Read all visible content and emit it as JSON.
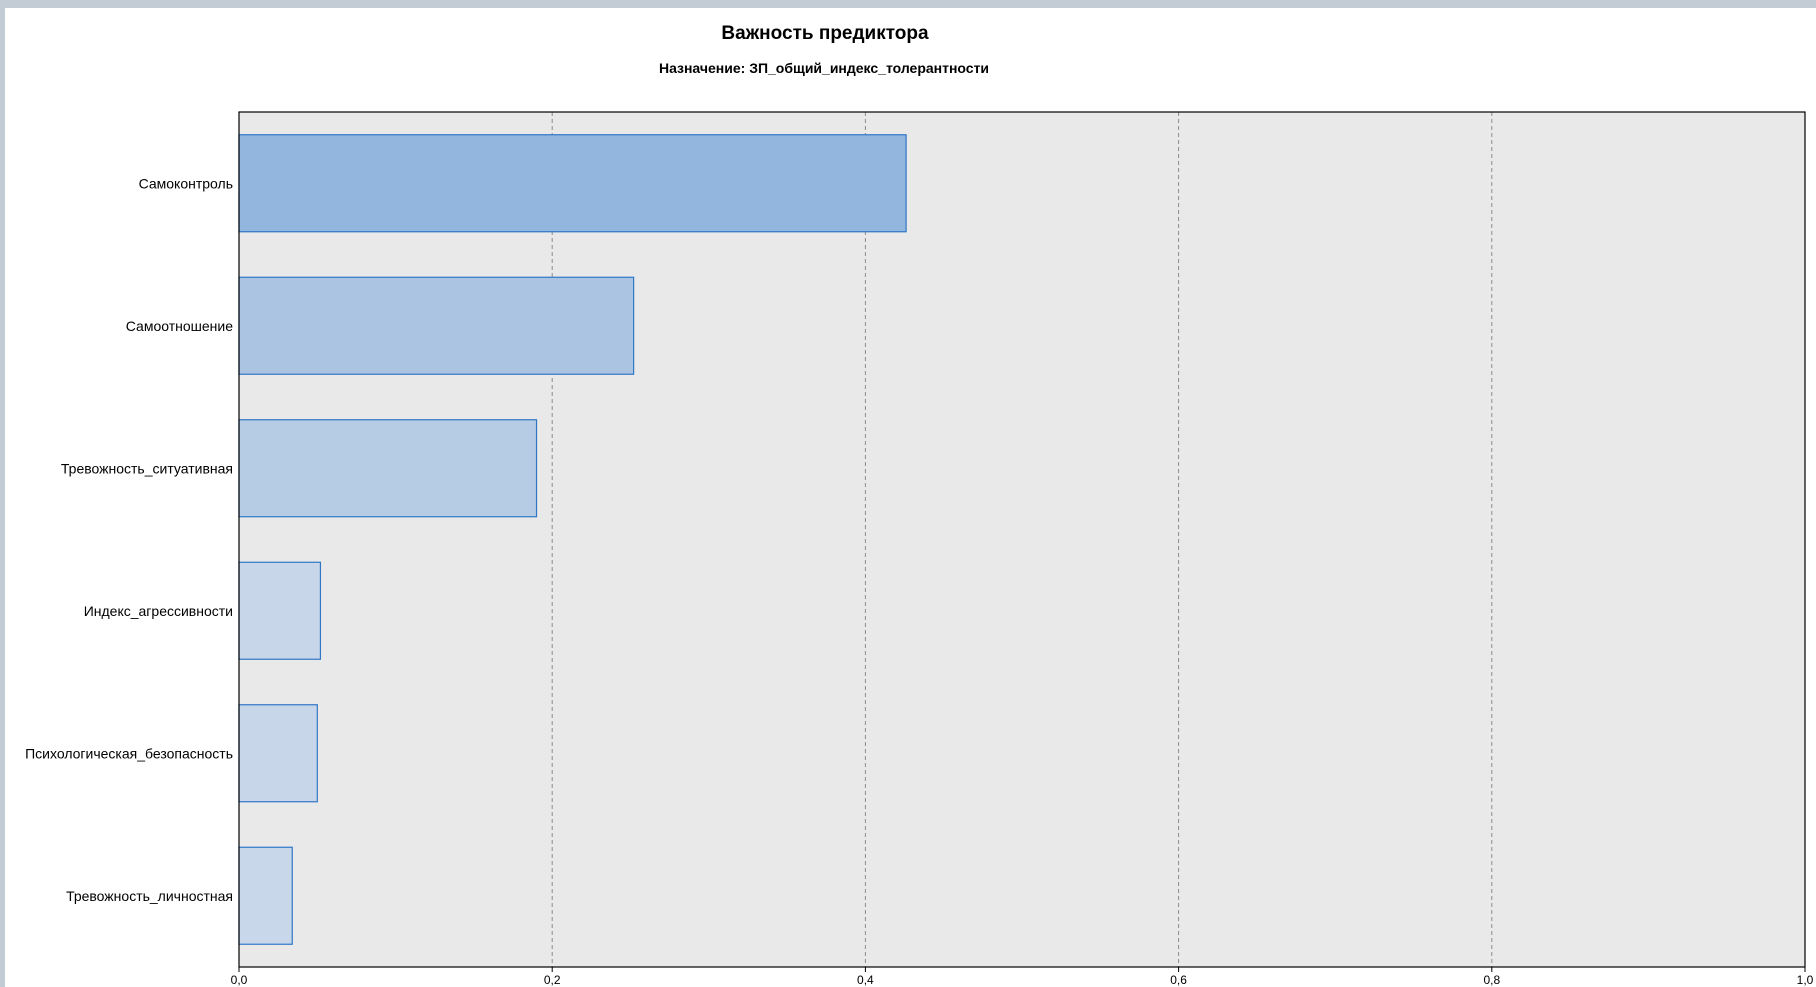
{
  "chart_data": {
    "type": "bar",
    "orientation": "horizontal",
    "title": "Важность предиктора",
    "subtitle": "Назначение: ЗП_общий_индекс_толерантности",
    "categories": [
      "Самоконтроль",
      "Самоотношение",
      "Тревожность_ситуативная",
      "Индекс_агрессивности",
      "Психологическая_безопасность",
      "Тревожность_личностная"
    ],
    "values": [
      0.426,
      0.252,
      0.19,
      0.052,
      0.05,
      0.034
    ],
    "bar_colors": [
      "#93b6de",
      "#aac4e2",
      "#b6cbe4",
      "#c7d6e8",
      "#c7d6e8",
      "#c8d7e9"
    ],
    "bar_stroke": "#2f77c6",
    "plot_background": "#e9e9e9",
    "xlim": [
      0,
      1
    ],
    "xticks": [
      0,
      0.2,
      0.4,
      0.6,
      0.8,
      1.0
    ],
    "xtick_labels": [
      "0,0",
      "0,2",
      "0,4",
      "0,6",
      "0,8",
      "1,0"
    ],
    "grid": true,
    "grid_style": "dashed-vertical",
    "xlabel": "",
    "ylabel": ""
  }
}
